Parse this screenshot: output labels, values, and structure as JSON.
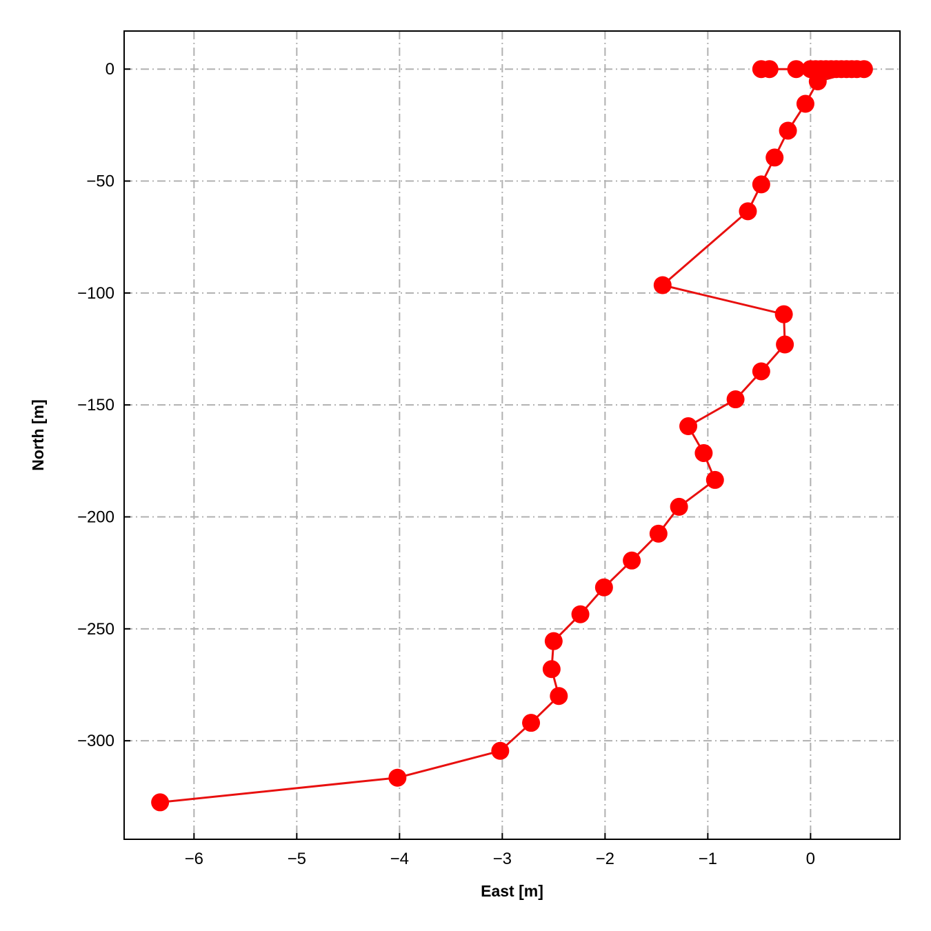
{
  "chart_data": {
    "type": "line",
    "title": "",
    "xlabel": "East [m]",
    "ylabel": "North [m]",
    "xlim": [
      -6.68,
      0.87
    ],
    "ylim": [
      -344,
      17
    ],
    "xticks": [
      -6,
      -5,
      -4,
      -3,
      -2,
      -1,
      0
    ],
    "xtick_labels": [
      "−6",
      "−5",
      "−4",
      "−3",
      "−2",
      "−1",
      "0"
    ],
    "yticks": [
      0,
      -50,
      -100,
      -150,
      -200,
      -250,
      -300
    ],
    "ytick_labels": [
      "0",
      "−50",
      "−100",
      "−150",
      "−200",
      "−250",
      "−300"
    ],
    "grid": true,
    "grid_style": "dash-dot",
    "legend": "none",
    "colors": {
      "line": "#e8100f",
      "marker": "#ff0000",
      "grid": "#b0b0b0",
      "axes": "#000000"
    },
    "series": [
      {
        "marker": "circle",
        "points": [
          {
            "x": -0.48,
            "y": 0.0
          },
          {
            "x": -0.4,
            "y": 0.0
          },
          {
            "x": -0.14,
            "y": 0.0
          },
          {
            "x": 0.0,
            "y": 0.0
          },
          {
            "x": 0.05,
            "y": 0.0
          },
          {
            "x": 0.1,
            "y": 0.0
          },
          {
            "x": 0.15,
            "y": 0.0
          },
          {
            "x": 0.2,
            "y": 0.0
          },
          {
            "x": 0.25,
            "y": 0.0
          },
          {
            "x": 0.3,
            "y": 0.0
          },
          {
            "x": 0.35,
            "y": 0.0
          },
          {
            "x": 0.4,
            "y": 0.0
          },
          {
            "x": 0.45,
            "y": 0.0
          },
          {
            "x": 0.52,
            "y": 0.0
          },
          {
            "x": 0.07,
            "y": -5.5
          },
          {
            "x": -0.05,
            "y": -15.5
          },
          {
            "x": -0.22,
            "y": -27.5
          },
          {
            "x": -0.35,
            "y": -39.5
          },
          {
            "x": -0.48,
            "y": -51.5
          },
          {
            "x": -0.61,
            "y": -63.5
          },
          {
            "x": -1.44,
            "y": -96.5
          },
          {
            "x": -0.26,
            "y": -109.5
          },
          {
            "x": -0.25,
            "y": -123.0
          },
          {
            "x": -0.48,
            "y": -135.0
          },
          {
            "x": -0.73,
            "y": -147.5
          },
          {
            "x": -1.19,
            "y": -159.5
          },
          {
            "x": -1.04,
            "y": -171.5
          },
          {
            "x": -0.93,
            "y": -183.5
          },
          {
            "x": -1.28,
            "y": -195.5
          },
          {
            "x": -1.48,
            "y": -207.5
          },
          {
            "x": -1.74,
            "y": -219.5
          },
          {
            "x": -2.01,
            "y": -231.5
          },
          {
            "x": -2.24,
            "y": -243.5
          },
          {
            "x": -2.5,
            "y": -255.5
          },
          {
            "x": -2.52,
            "y": -268.0
          },
          {
            "x": -2.45,
            "y": -280.0
          },
          {
            "x": -2.72,
            "y": -292.0
          },
          {
            "x": -3.02,
            "y": -304.5
          },
          {
            "x": -4.02,
            "y": -316.5
          },
          {
            "x": -6.33,
            "y": -327.5
          }
        ]
      }
    ]
  }
}
